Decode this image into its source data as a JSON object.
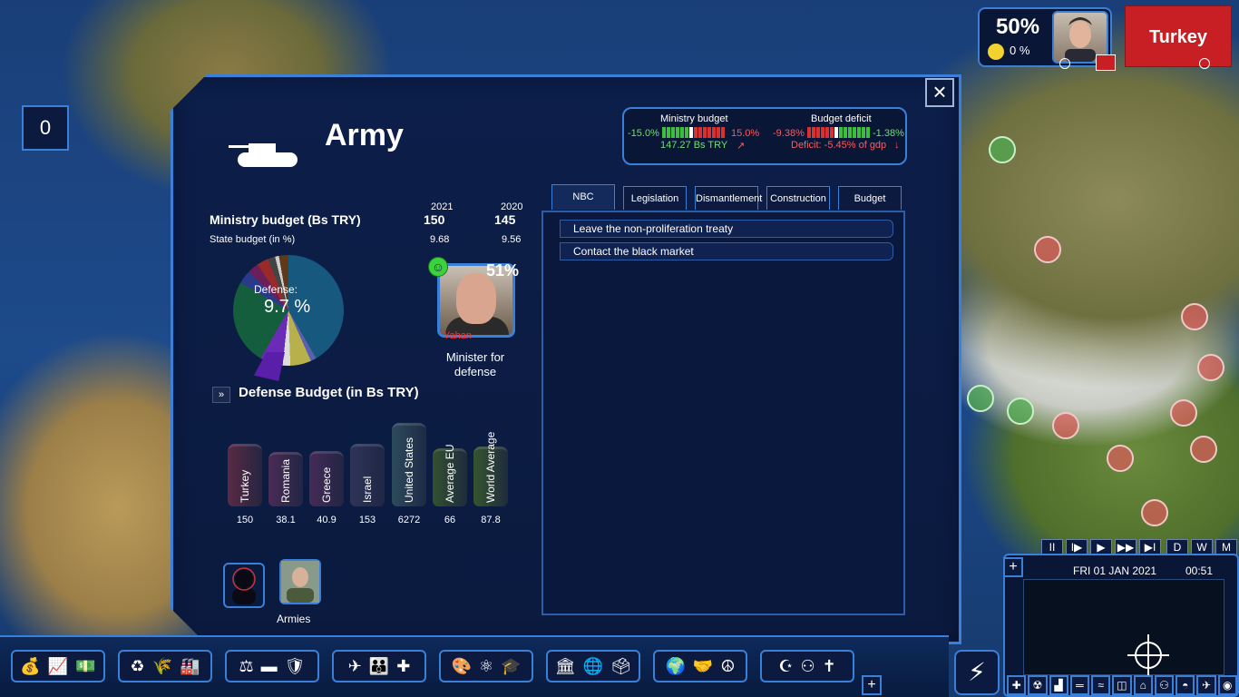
{
  "panel": {
    "title": "Army",
    "close_icon": "×"
  },
  "mini_budget": {
    "ministry_label": "Ministry budget",
    "ministry_left": "-15.0%",
    "ministry_right": "15.0%",
    "ministry_value": "147.27 Bs TRY",
    "deficit_label": "Budget deficit",
    "deficit_left": "-9.38%",
    "deficit_right": "-1.38%",
    "deficit_value": "Deficit: -5.45% of gdp"
  },
  "ministry": {
    "year_current": "2021",
    "year_previous": "2020",
    "budget_label": "Ministry budget (Bs TRY)",
    "budget_current": "150",
    "budget_previous": "145",
    "state_label": "State budget (in %)",
    "state_current": "9.68",
    "state_previous": "9.56"
  },
  "pie": {
    "label": "Defense:",
    "pct": "9.7 %"
  },
  "minister": {
    "approval": "51%",
    "name": "Yahan",
    "caption": "Minister for defense"
  },
  "defense_budget": {
    "arrow": "»",
    "title": "Defense Budget (in Bs TRY)"
  },
  "chart_data": {
    "type": "bar",
    "categories": [
      "Turkey",
      "Romania",
      "Greece",
      "Israel",
      "United States",
      "Average EU",
      "World Average"
    ],
    "values": [
      150,
      38.1,
      40.9,
      153,
      6272,
      66,
      87.8
    ],
    "value_labels": [
      "150",
      "38.1",
      "40.9",
      "153",
      "6272",
      "66",
      "87.8"
    ],
    "title": "Defense Budget (in Bs TRY)"
  },
  "units": {
    "armies_label": "Armies"
  },
  "tabs": [
    "NBC",
    "Legislation",
    "Dismantlement",
    "Construction",
    "Budget"
  ],
  "nbc_actions": [
    "Leave the non-proliferation treaty",
    "Contact the black market"
  ],
  "hud": {
    "approval": "50%",
    "secondary": "0 %",
    "country": "Turkey"
  },
  "left_counter": "0",
  "clock": {
    "date": "FRI 01 JAN 2021",
    "time": "00:51",
    "speed_buttons": [
      "II",
      "I▶",
      "▶",
      "▶▶",
      "▶I",
      "D",
      "W",
      "M"
    ]
  },
  "colors": {
    "panel_border": "#3a7fd8",
    "positive": "#6fe06f",
    "negative": "#ff5a5a"
  }
}
